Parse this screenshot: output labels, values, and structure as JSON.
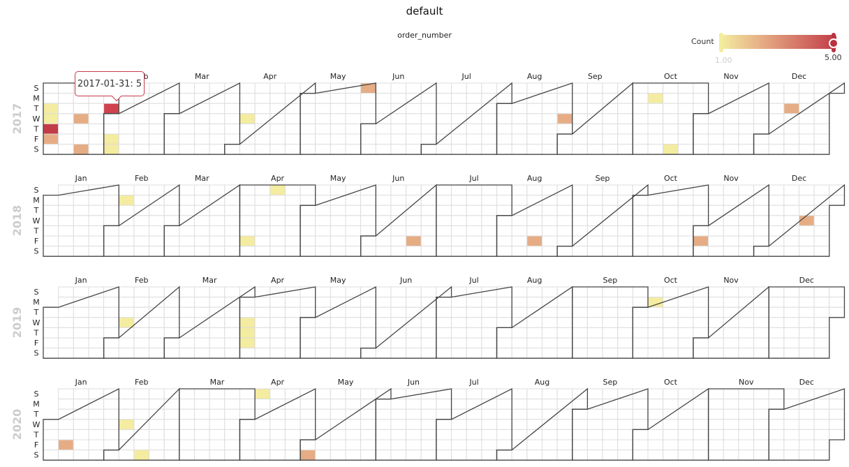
{
  "title": "default",
  "chart_data": {
    "type": "heatmap",
    "subtitle": "order_number",
    "legend": {
      "label": "Count",
      "min": "1.00",
      "max": "5.00",
      "placement": "top-right"
    },
    "colors": {
      "low": "#f4eca0",
      "mid": "#e6ad85",
      "high": "#c23c48"
    },
    "years": [
      "2017",
      "2018",
      "2019",
      "2020"
    ],
    "day_labels": [
      "S",
      "M",
      "T",
      "W",
      "T",
      "F",
      "S"
    ],
    "month_labels": [
      "Jan",
      "Feb",
      "Mar",
      "Apr",
      "May",
      "Jun",
      "Jul",
      "Aug",
      "Sep",
      "Oct",
      "Nov",
      "Dec"
    ],
    "values": [
      {
        "date": "2017-01-03",
        "value": 1
      },
      {
        "date": "2017-01-04",
        "value": 1
      },
      {
        "date": "2017-01-05",
        "value": 5
      },
      {
        "date": "2017-01-06",
        "value": 2
      },
      {
        "date": "2017-01-18",
        "value": 2
      },
      {
        "date": "2017-01-21",
        "value": 2
      },
      {
        "date": "2017-01-31",
        "value": 5
      },
      {
        "date": "2017-02-03",
        "value": 1
      },
      {
        "date": "2017-02-04",
        "value": 1
      },
      {
        "date": "2017-04-05",
        "value": 1
      },
      {
        "date": "2017-05-28",
        "value": 2
      },
      {
        "date": "2017-08-30",
        "value": 2
      },
      {
        "date": "2017-10-09",
        "value": 1
      },
      {
        "date": "2017-10-21",
        "value": 1
      },
      {
        "date": "2017-12-12",
        "value": 2
      },
      {
        "date": "2018-02-05",
        "value": 1
      },
      {
        "date": "2018-04-06",
        "value": 1
      },
      {
        "date": "2018-04-15",
        "value": 1
      },
      {
        "date": "2018-06-22",
        "value": 2
      },
      {
        "date": "2018-08-17",
        "value": 2
      },
      {
        "date": "2018-11-02",
        "value": 2
      },
      {
        "date": "2018-12-19",
        "value": 2
      },
      {
        "date": "2019-02-06",
        "value": 1
      },
      {
        "date": "2019-04-03",
        "value": 1
      },
      {
        "date": "2019-04-04",
        "value": 1
      },
      {
        "date": "2019-04-05",
        "value": 1
      },
      {
        "date": "2019-10-07",
        "value": 1
      },
      {
        "date": "2020-01-10",
        "value": 2
      },
      {
        "date": "2020-02-05",
        "value": 1
      },
      {
        "date": "2020-02-15",
        "value": 1
      },
      {
        "date": "2020-04-05",
        "value": 1
      },
      {
        "date": "2020-05-02",
        "value": 2
      }
    ],
    "tooltip": "2017-01-31: 5"
  }
}
